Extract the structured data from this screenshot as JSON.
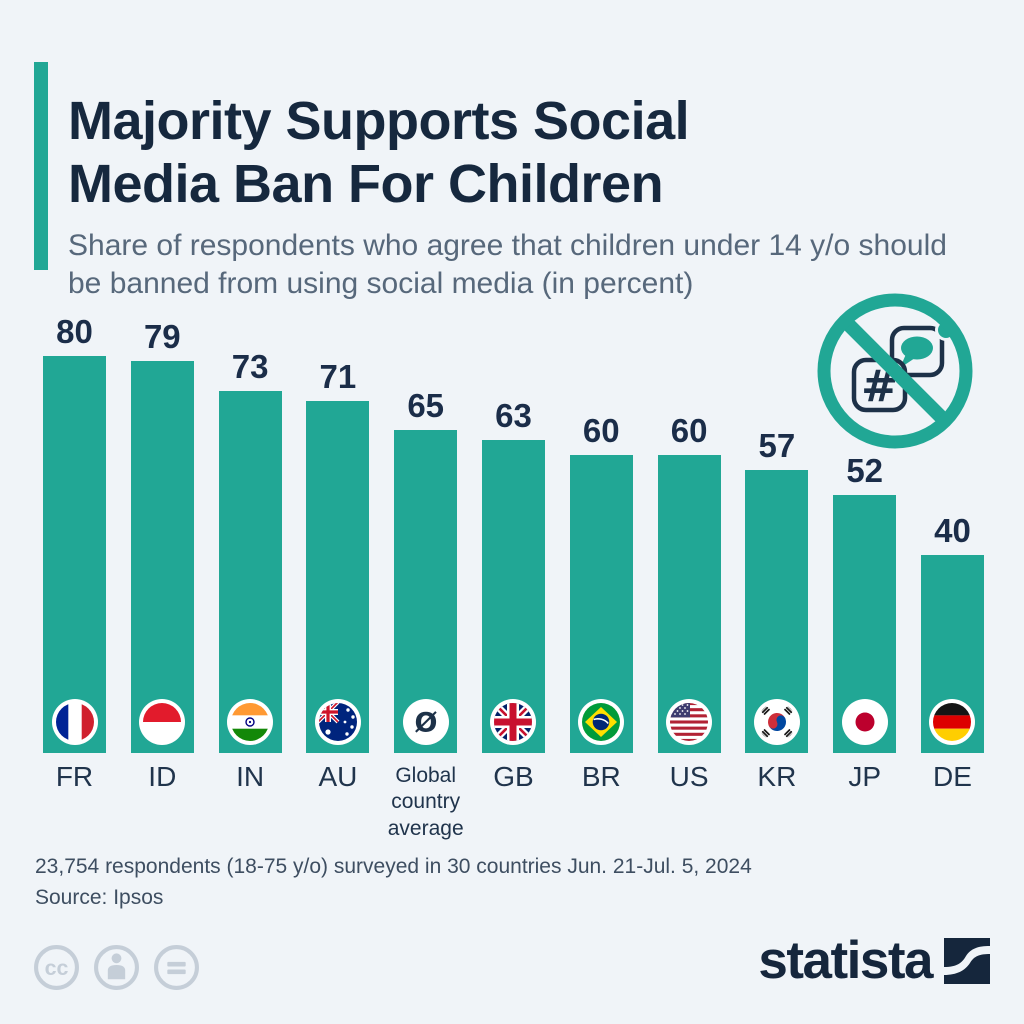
{
  "header": {
    "title": "Majority Supports Social Media Ban For Children",
    "subtitle": "Share of respondents who agree that children under 14 y/o should be banned from using social media (in percent)"
  },
  "chart_data": {
    "type": "bar",
    "categories": [
      "FR",
      "ID",
      "IN",
      "AU",
      "Global country average",
      "GB",
      "BR",
      "US",
      "KR",
      "JP",
      "DE"
    ],
    "values": [
      80,
      79,
      73,
      71,
      65,
      63,
      60,
      60,
      57,
      52,
      40
    ],
    "flag_codes": [
      "fr",
      "id",
      "in",
      "au",
      "global",
      "gb",
      "br",
      "us",
      "kr",
      "jp",
      "de"
    ],
    "flag_icons": [
      "france-flag-icon",
      "indonesia-flag-icon",
      "india-flag-icon",
      "australia-flag-icon",
      "global-average-icon",
      "uk-flag-icon",
      "brazil-flag-icon",
      "usa-flag-icon",
      "south-korea-flag-icon",
      "japan-flag-icon",
      "germany-flag-icon"
    ],
    "title": "Majority Supports Social Media Ban For Children",
    "xlabel": "",
    "ylabel": "Share of respondents (in percent)",
    "ylim": [
      0,
      80
    ],
    "grid": false,
    "legend": "none",
    "value_labels_shown": true,
    "bar_color": "#21a795"
  },
  "decoration": {
    "ban_icon": "banned-social-media-icon"
  },
  "footer": {
    "note": "23,754 respondents (18-75 y/o) surveyed in 30 countries Jun. 21-Jul. 5, 2024",
    "source": "Source: Ipsos",
    "license_icons": [
      "cc-icon",
      "cc-by-person-icon",
      "cc-nd-equals-icon"
    ],
    "brand": "statista"
  },
  "colors": {
    "background": "#f0f4f8",
    "bar": "#21a795",
    "accent_bar": "#21a795",
    "title": "#16283e",
    "subtitle": "#57687b",
    "value_label": "#1b2d49",
    "category_label": "#20344c",
    "note_text": "#3e4e61",
    "license_gray": "#c5ced8",
    "brand_navy": "#15263c"
  }
}
